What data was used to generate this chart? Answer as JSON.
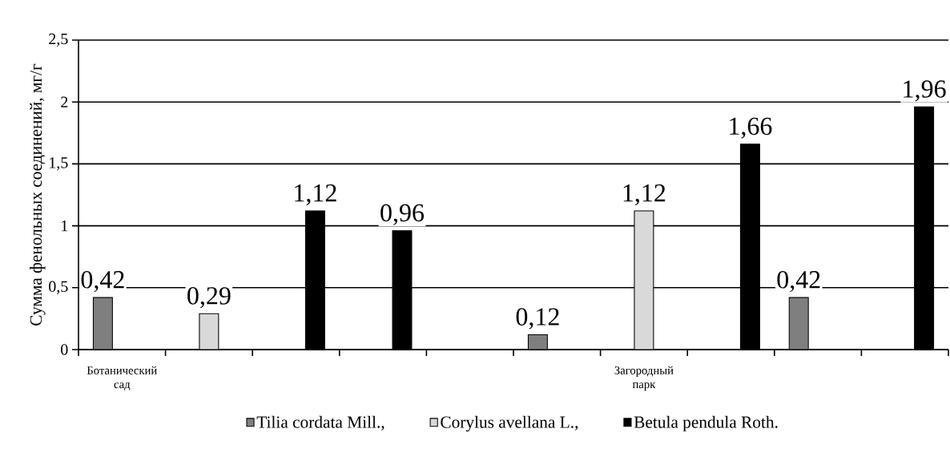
{
  "chart_data": {
    "type": "bar",
    "ylabel": "Сумма фенольных соединений, мг/г",
    "categories": [
      "Ботанический сад",
      null,
      null,
      null,
      null,
      null,
      "Загородный парк",
      null,
      null,
      null
    ],
    "series": [
      {
        "name": "Tilia cordata Mill.,",
        "color": "#7f7f7f",
        "values": [
          0.42,
          null,
          null,
          null,
          null,
          0.12,
          null,
          null,
          0.42,
          null
        ],
        "value_labels": [
          "0,42",
          null,
          null,
          null,
          null,
          "0,12",
          null,
          null,
          "0,42",
          null
        ]
      },
      {
        "name": "Corylus avellana L.,",
        "color": "#d9d9d9",
        "values": [
          null,
          0.29,
          null,
          null,
          null,
          null,
          1.12,
          null,
          null,
          null
        ],
        "value_labels": [
          null,
          "0,29",
          null,
          null,
          null,
          null,
          "1,12",
          null,
          null,
          null
        ]
      },
      {
        "name": "Betula pendula Roth.",
        "color": "#000000",
        "values": [
          null,
          null,
          1.12,
          0.96,
          null,
          null,
          null,
          1.66,
          null,
          1.96
        ],
        "value_labels": [
          null,
          null,
          "1,12",
          "0,96",
          null,
          null,
          null,
          "1,66",
          null,
          "1,96"
        ]
      }
    ],
    "ylim": [
      0,
      2.5
    ],
    "yticks": [
      0,
      {
        "value": 0.5,
        "label": "0,5"
      },
      1,
      {
        "value": 1.5,
        "label": "1,5"
      },
      2,
      {
        "value": 2.5,
        "label": "2,5"
      }
    ],
    "grid": "y",
    "legend": "bottom"
  }
}
